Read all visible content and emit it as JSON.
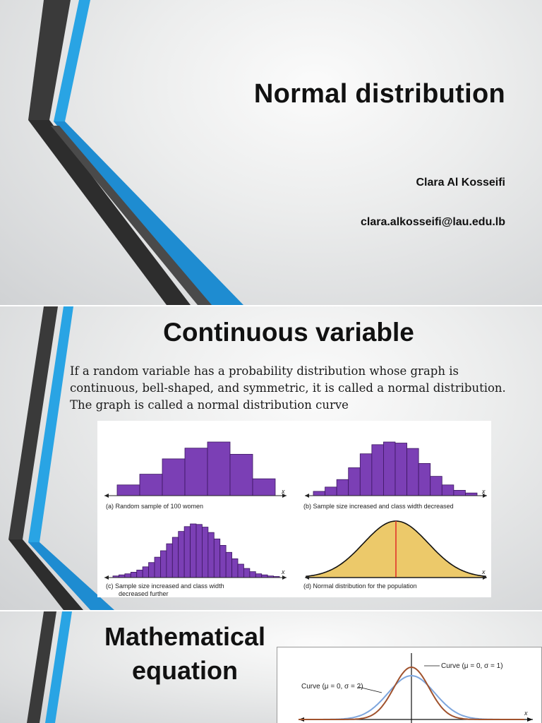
{
  "slide1": {
    "title": "Normal distribution",
    "author": "Clara Al Kosseifi",
    "email": "clara.alkosseifi@lau.edu.lb"
  },
  "slide2": {
    "title": "Continuous variable",
    "body": {
      "before": "If a random variable has a probability distribution whose graph is continuous, bell-shaped, and symmetric, it is called a ",
      "term": "normal distribution",
      "after": ". The graph is called a normal distribution curve"
    },
    "figure": {
      "panels": [
        {
          "caption": "(a) Random sample of 100 women",
          "bars": [
            0.35,
            0.7,
            1.2,
            1.55,
            1.75,
            1.35,
            0.55
          ]
        },
        {
          "caption": "(b) Sample size increased and class width decreased",
          "bars": [
            0.08,
            0.16,
            0.3,
            0.52,
            0.78,
            0.95,
            1.0,
            0.98,
            0.88,
            0.6,
            0.36,
            0.2,
            0.1,
            0.05
          ]
        },
        {
          "caption_line1": "(c) Sample size increased and class width",
          "caption_line2": "decreased further",
          "bars": [
            0.03,
            0.05,
            0.07,
            0.1,
            0.14,
            0.2,
            0.28,
            0.38,
            0.5,
            0.63,
            0.75,
            0.86,
            0.95,
            1.0,
            0.99,
            0.94,
            0.84,
            0.72,
            0.6,
            0.47,
            0.35,
            0.25,
            0.17,
            0.11,
            0.07,
            0.05,
            0.03,
            0.02
          ]
        },
        {
          "caption": "(d) Normal distribution for the population"
        }
      ],
      "axis_label": "x",
      "colors": {
        "bar": "#7b3fb5",
        "bar_stroke": "#3b1760",
        "curve_fill": "#ecc96a",
        "mean_line": "#e2342a"
      }
    }
  },
  "slide3": {
    "title_line1": "Mathematical",
    "title_line2": "equation",
    "figure": {
      "curve1_label": "Curve (μ = 0, σ = 1)",
      "curve2_label": "Curve (μ = 0, σ = 2)",
      "axis_label": "x",
      "colors": {
        "curve1": "#a0522d",
        "curve2": "#7ea6dd"
      }
    }
  },
  "colors": {
    "accent_blue": "#29a4e4",
    "dark_gray": "#3c3c3c"
  }
}
